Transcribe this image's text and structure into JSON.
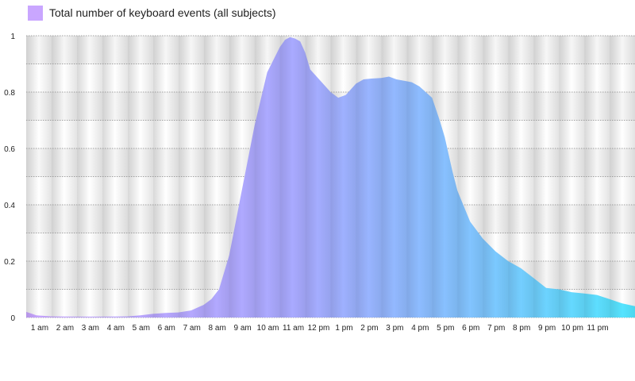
{
  "chart_data": {
    "type": "area",
    "title": "",
    "xlabel": "",
    "ylabel": "",
    "legend": {
      "placement": "top-left",
      "entries": [
        "Total number of keyboard events (all subjects)"
      ]
    },
    "grid": true,
    "ylim": [
      0,
      1
    ],
    "xlim": [
      0,
      24
    ],
    "y_ticks": [
      "0",
      "0.2",
      "0.4",
      "0.6",
      "0.8",
      "1"
    ],
    "x_ticks": [
      "1 am",
      "2 am",
      "3 am",
      "4 am",
      "5 am",
      "6 am",
      "7 am",
      "8 am",
      "9 am",
      "10 am",
      "11 am",
      "12 pm",
      "1 pm",
      "2 pm",
      "3 pm",
      "4 pm",
      "5 pm",
      "6 pm",
      "7 pm",
      "8 pm",
      "9 pm",
      "10 pm",
      "11 pm"
    ],
    "gradient_colors": [
      "#c9a6ff",
      "#a8aaff",
      "#7fc6ff",
      "#52e6ff"
    ],
    "series": [
      {
        "name": "Total number of keyboard events (all subjects)",
        "x": [
          0,
          0.4,
          1,
          2,
          3,
          4,
          4.5,
          5,
          5.5,
          6,
          6.5,
          7,
          7.3,
          7.6,
          8,
          8.5,
          9,
          9.5,
          10,
          10.2,
          10.4,
          10.6,
          10.8,
          11,
          11.2,
          11.5,
          12,
          12.3,
          12.6,
          13,
          13.3,
          13.6,
          14,
          14.3,
          14.6,
          14.9,
          15.2,
          15.5,
          16,
          16.3,
          16.5,
          16.8,
          17,
          17.5,
          18,
          18.5,
          19,
          19.5,
          20,
          20.5,
          21,
          21.5,
          22,
          22.5,
          23,
          23.5,
          24
        ],
        "y": [
          0.02,
          0.008,
          0.004,
          0.003,
          0.003,
          0.004,
          0.008,
          0.013,
          0.016,
          0.018,
          0.025,
          0.045,
          0.065,
          0.1,
          0.22,
          0.45,
          0.68,
          0.87,
          0.96,
          0.985,
          0.995,
          0.99,
          0.98,
          0.94,
          0.88,
          0.85,
          0.8,
          0.78,
          0.79,
          0.83,
          0.845,
          0.848,
          0.85,
          0.855,
          0.845,
          0.84,
          0.835,
          0.82,
          0.78,
          0.7,
          0.64,
          0.52,
          0.45,
          0.34,
          0.28,
          0.235,
          0.2,
          0.175,
          0.14,
          0.105,
          0.1,
          0.09,
          0.085,
          0.08,
          0.065,
          0.05,
          0.04
        ]
      }
    ]
  }
}
